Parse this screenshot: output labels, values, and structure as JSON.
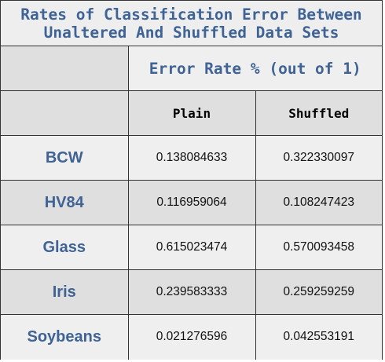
{
  "title": {
    "line1": "Rates of Classification Error Between",
    "line2": "Unaltered And Shuffled Data Sets"
  },
  "header": {
    "span_label": "Error Rate % (out of 1)",
    "columns": [
      "Plain",
      "Shuffled"
    ]
  },
  "rows": [
    {
      "label": "BCW",
      "values": [
        "0.138084633",
        "0.322330097"
      ]
    },
    {
      "label": "HV84",
      "values": [
        "0.116959064",
        "0.108247423"
      ]
    },
    {
      "label": "Glass",
      "values": [
        "0.615023474",
        "0.570093458"
      ]
    },
    {
      "label": "Iris",
      "values": [
        "0.239583333",
        "0.259259259"
      ]
    },
    {
      "label": "Soybeans",
      "values": [
        "0.021276596",
        "0.042553191"
      ]
    }
  ],
  "colors": {
    "accent": "#3f6394",
    "band_dark": "#dfdfdf",
    "band_light": "#efefef",
    "border": "#333333"
  }
}
